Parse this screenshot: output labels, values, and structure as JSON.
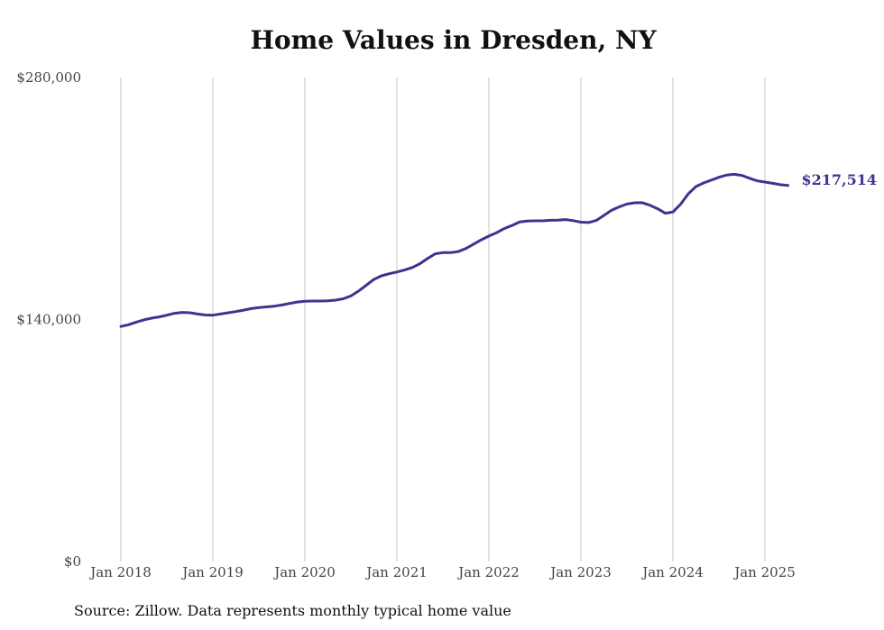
{
  "chart_data": {
    "type": "line",
    "title": "Home Values in Dresden, NY",
    "source_note": "Source: Zillow. Data represents monthly typical home value",
    "y_ticks": [
      "$280,000",
      "$140,000",
      "$0"
    ],
    "y_tick_values": [
      280000,
      140000,
      0
    ],
    "ylim": [
      0,
      280000
    ],
    "x_ticks": [
      "Jan 2018",
      "Jan 2019",
      "Jan 2020",
      "Jan 2021",
      "Jan 2022",
      "Jan 2023",
      "Jan 2024",
      "Jan 2025"
    ],
    "x_tick_values": [
      "2018-01",
      "2019-01",
      "2020-01",
      "2021-01",
      "2022-01",
      "2023-01",
      "2024-01",
      "2025-01"
    ],
    "grid": "vertical",
    "line_color": "#3d3490",
    "end_label": "$217,514",
    "series": [
      {
        "x": [
          "2018-01",
          "2018-02",
          "2018-03",
          "2018-04",
          "2018-05",
          "2018-06",
          "2018-07",
          "2018-08",
          "2018-09",
          "2018-10",
          "2018-11",
          "2018-12",
          "2019-01",
          "2019-02",
          "2019-03",
          "2019-04",
          "2019-05",
          "2019-06",
          "2019-07",
          "2019-08",
          "2019-09",
          "2019-10",
          "2019-11",
          "2019-12",
          "2020-01",
          "2020-02",
          "2020-03",
          "2020-04",
          "2020-05",
          "2020-06",
          "2020-07",
          "2020-08",
          "2020-09",
          "2020-10",
          "2020-11",
          "2020-12",
          "2021-01",
          "2021-02",
          "2021-03",
          "2021-04",
          "2021-05",
          "2021-06",
          "2021-07",
          "2021-08",
          "2021-09",
          "2021-10",
          "2021-11",
          "2021-12",
          "2022-01",
          "2022-02",
          "2022-03",
          "2022-04",
          "2022-05",
          "2022-06",
          "2022-07",
          "2022-08",
          "2022-09",
          "2022-10",
          "2022-11",
          "2022-12",
          "2023-01",
          "2023-02",
          "2023-03",
          "2023-04",
          "2023-05",
          "2023-06",
          "2023-07",
          "2023-08",
          "2023-09",
          "2023-10",
          "2023-11",
          "2023-12",
          "2024-01",
          "2024-02",
          "2024-03",
          "2024-04",
          "2024-05",
          "2024-06",
          "2024-07",
          "2024-08",
          "2024-09",
          "2024-10",
          "2024-11",
          "2024-12",
          "2025-01",
          "2025-02",
          "2025-03",
          "2025-04"
        ],
        "values": [
          136000,
          137000,
          138500,
          139800,
          140800,
          141500,
          142500,
          143600,
          144100,
          143900,
          143200,
          142600,
          142500,
          143200,
          143900,
          144600,
          145400,
          146300,
          146900,
          147300,
          147700,
          148400,
          149300,
          150100,
          150600,
          150700,
          150700,
          150800,
          151200,
          152000,
          153600,
          156500,
          159800,
          163200,
          165300,
          166500,
          167500,
          168600,
          170100,
          172300,
          175300,
          178000,
          178700,
          178700,
          179300,
          181100,
          183600,
          186100,
          188300,
          190200,
          192600,
          194400,
          196400,
          197000,
          197100,
          197100,
          197400,
          197500,
          197800,
          197200,
          196300,
          196100,
          197300,
          200200,
          203200,
          205200,
          206800,
          207500,
          207600,
          206100,
          204100,
          201500,
          202200,
          206700,
          212700,
          216900,
          219000,
          220600,
          222300,
          223600,
          224000,
          223400,
          221700,
          220200,
          219500,
          218800,
          218000,
          217514
        ]
      }
    ]
  }
}
